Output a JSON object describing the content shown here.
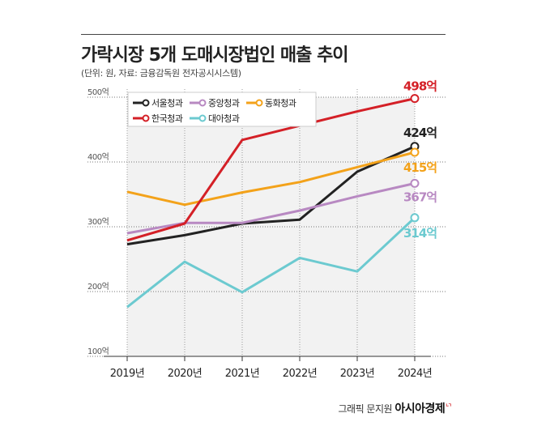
{
  "header": {
    "title": "가락시장 5개 도매시장법인 매출 추이",
    "subtitle": "(단위: 원, 자료: 금융감독원 전자공시시스템)"
  },
  "credit": {
    "prefix": "그래픽 문지원",
    "brand": "아시아경제"
  },
  "chart_data": {
    "type": "line",
    "x": [
      "2019년",
      "2020년",
      "2021년",
      "2022년",
      "2023년",
      "2024년"
    ],
    "ylim": [
      100,
      500
    ],
    "yticks": [
      100,
      200,
      300,
      400,
      500
    ],
    "ytick_labels": [
      "100억",
      "200억",
      "300억",
      "400억",
      "500억"
    ],
    "grid": true,
    "legend_position": "top-left",
    "series": [
      {
        "name": "서울청과",
        "color": "#222222",
        "values": [
          273,
          287,
          305,
          311,
          385,
          424
        ],
        "end_label": "424억"
      },
      {
        "name": "중앙청과",
        "color": "#b889c2",
        "values": [
          290,
          306,
          306,
          325,
          347,
          367
        ],
        "end_label": "367억"
      },
      {
        "name": "동화청과",
        "color": "#f3a21a",
        "values": [
          354,
          334,
          353,
          369,
          392,
          415
        ],
        "end_label": "415억"
      },
      {
        "name": "한국청과",
        "color": "#d42027",
        "values": [
          279,
          305,
          434,
          456,
          478,
          498
        ],
        "end_label": "498억"
      },
      {
        "name": "대아청과",
        "color": "#6ccad0",
        "values": [
          176,
          246,
          199,
          252,
          231,
          314
        ],
        "end_label": "314억"
      }
    ]
  }
}
